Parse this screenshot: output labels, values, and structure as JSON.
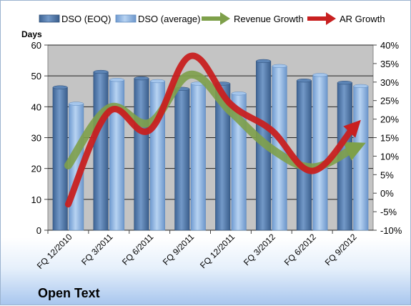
{
  "title": "Open Text",
  "colors": {
    "plot_bg": "#c4c4c4",
    "dso_eoq": "#4e76a7",
    "dso_avg": "#87b1e0",
    "revenue_growth": "#7ea04a",
    "ar_growth": "#c82020"
  },
  "chart_data": {
    "type": "bar",
    "categories": [
      "FQ 12/2010",
      "FQ 3/2011",
      "FQ 6/2011",
      "FQ 9/2011",
      "FQ 12/2011",
      "FQ 3/2012",
      "FQ 6/2012",
      "FQ 9/2012"
    ],
    "ylabel": "Days",
    "ylim": [
      0,
      60
    ],
    "yticks": [
      0,
      10,
      20,
      30,
      40,
      50,
      60
    ],
    "y2lim": [
      -10,
      40
    ],
    "y2ticks": [
      "-10%",
      "-5%",
      "0%",
      "5%",
      "10%",
      "15%",
      "20%",
      "25%",
      "30%",
      "35%",
      "40%"
    ],
    "legend_position": "top",
    "series": [
      {
        "name": "DSO (EOQ)",
        "axis": "left",
        "kind": "bar",
        "values": [
          46.3,
          51.3,
          49.2,
          45.8,
          47.5,
          54.8,
          48.5,
          47.8
        ]
      },
      {
        "name": "DSO (average)",
        "axis": "left",
        "kind": "bar",
        "values": [
          41,
          48.7,
          48.3,
          47.5,
          44.3,
          53.2,
          50.3,
          46.7
        ]
      },
      {
        "name": "Revenue Growth",
        "axis": "right",
        "kind": "line",
        "values": [
          7.5,
          23,
          19,
          32,
          22,
          12,
          7,
          12
        ]
      },
      {
        "name": "AR Growth",
        "axis": "right",
        "kind": "line",
        "values": [
          -3,
          22,
          17,
          37,
          24,
          17,
          6,
          17.5
        ]
      }
    ]
  }
}
